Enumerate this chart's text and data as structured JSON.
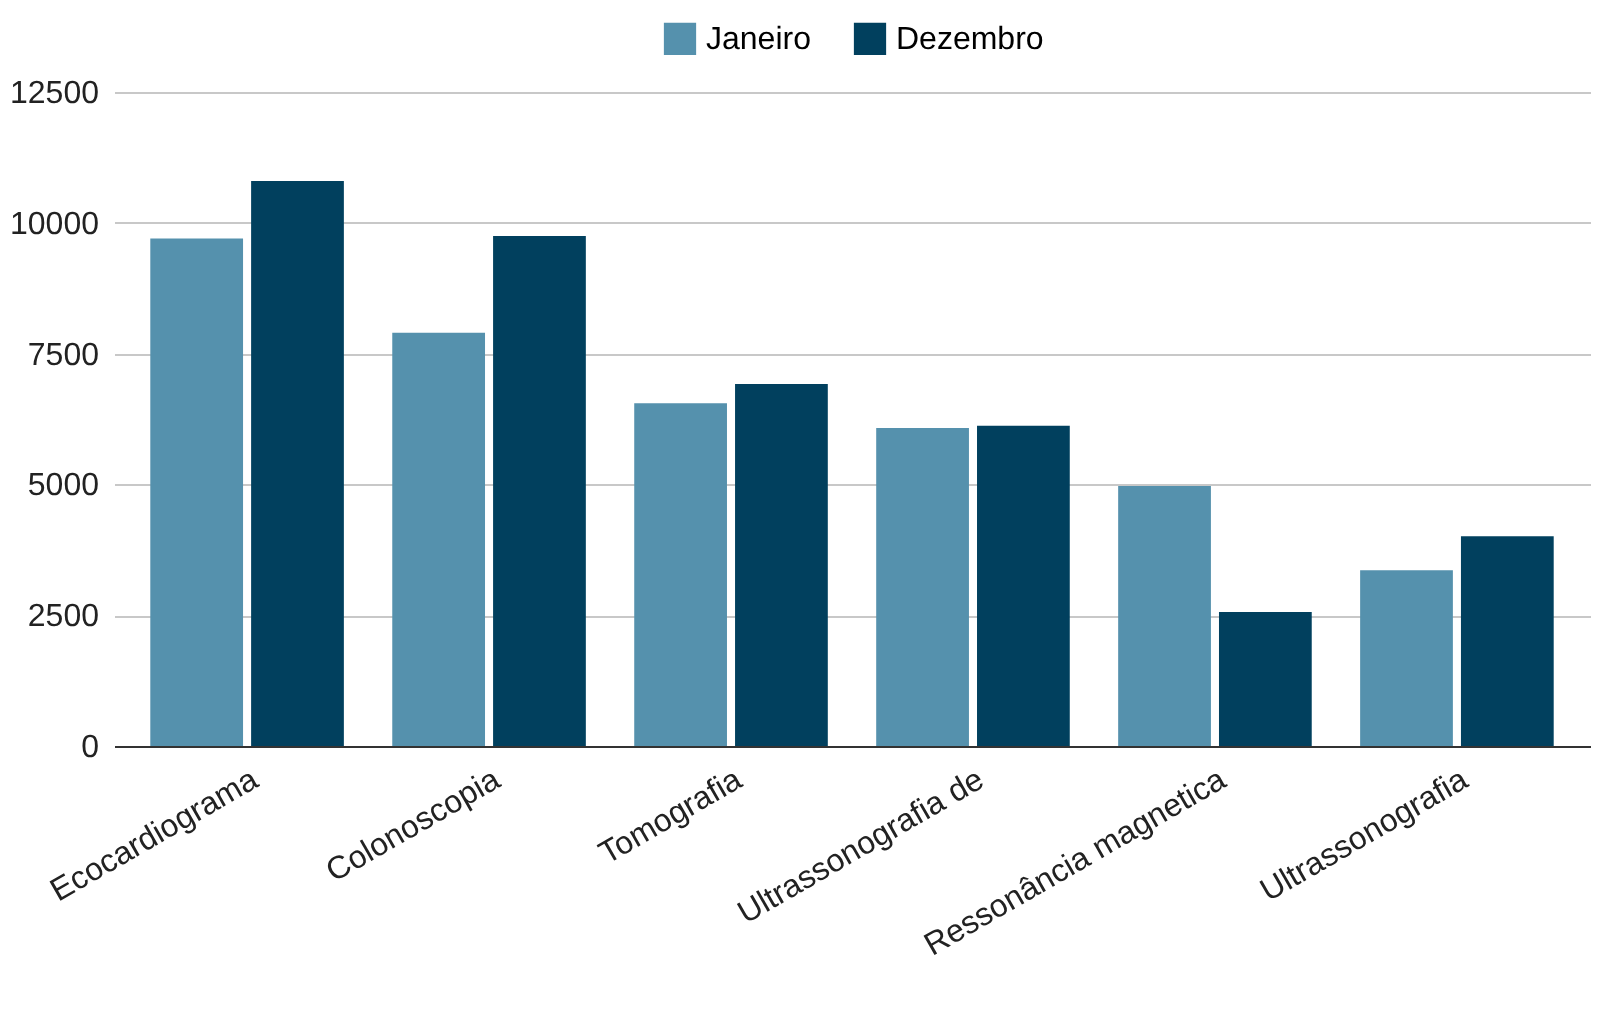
{
  "chart_data": {
    "type": "bar",
    "categories": [
      "Ecocardiograma",
      "Colonoscopia",
      "Tomografia",
      "Ultrassonografia de",
      "Ressonância magnetica",
      "Ultrassonografia"
    ],
    "series": [
      {
        "name": "Janeiro",
        "color": "#5591ad",
        "values": [
          9700,
          7900,
          6550,
          6080,
          4970,
          3360
        ]
      },
      {
        "name": "Dezembro",
        "color": "#01405e",
        "values": [
          10800,
          9750,
          6920,
          6120,
          2560,
          4010
        ]
      }
    ],
    "ylim": [
      0,
      12500
    ],
    "yticks": [
      0,
      2500,
      5000,
      7500,
      10000,
      12500
    ],
    "grid": "y",
    "legend": "top"
  }
}
